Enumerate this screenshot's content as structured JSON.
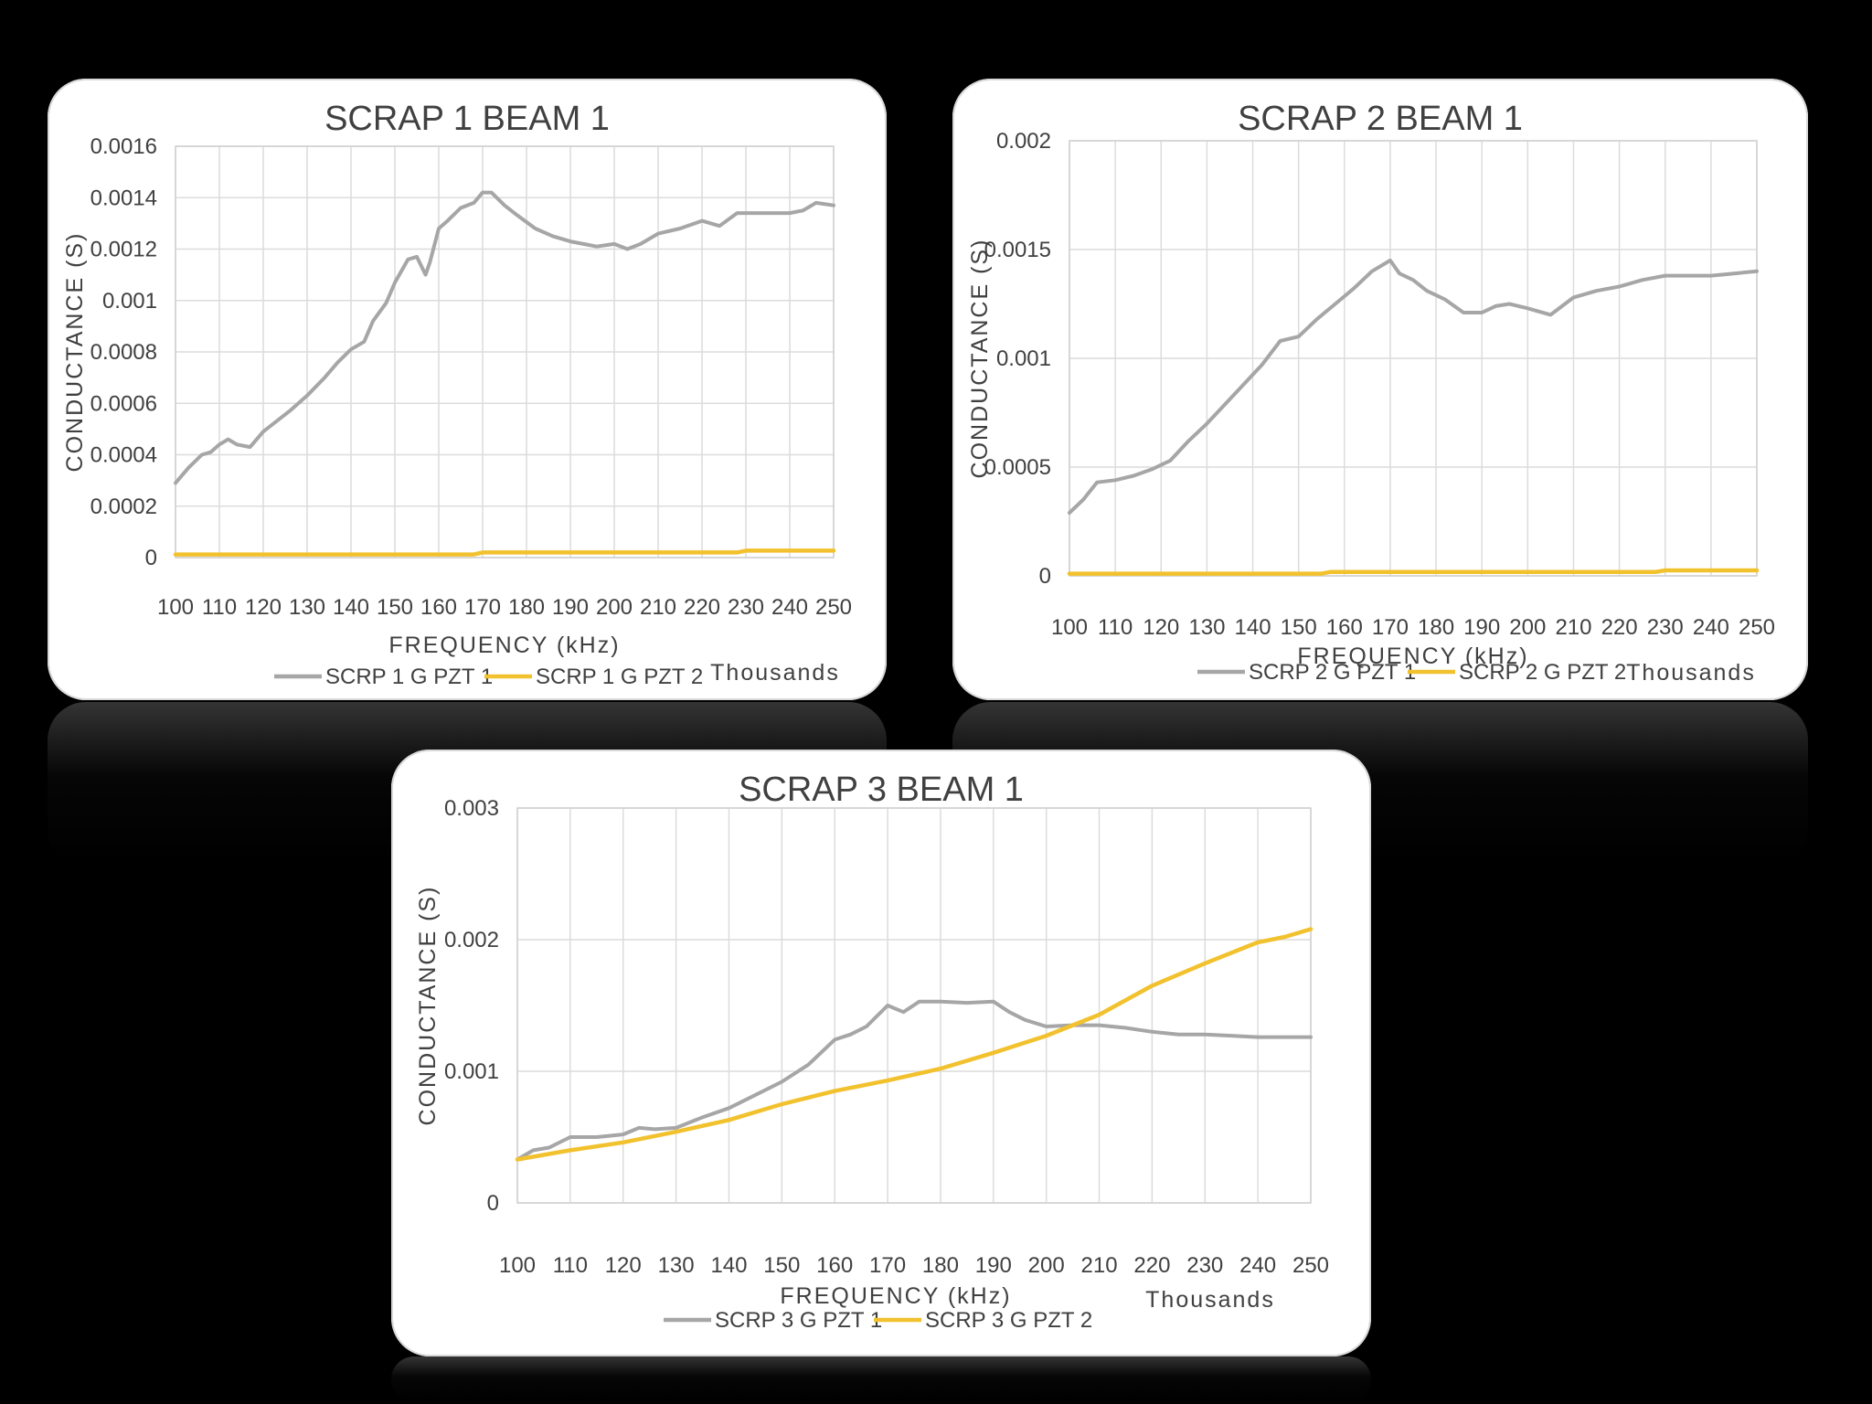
{
  "colors": {
    "background": "#000000",
    "panel": "#ffffff",
    "series_gray": "#a6a6a6",
    "series_gold": "#f2c12e",
    "text": "#404040",
    "grid": "#dcdcdc"
  },
  "chart_data": [
    {
      "type": "line",
      "title": "SCRAP 1 BEAM 1",
      "xlabel": "FREQUENCY (kHz)",
      "ylabel": "CONDUCTANCE (S)",
      "x_unit_label": "Thousands",
      "xlim": [
        100,
        250
      ],
      "ylim": [
        0,
        0.0016
      ],
      "xticks": [
        100,
        110,
        120,
        130,
        140,
        150,
        160,
        170,
        180,
        190,
        200,
        210,
        220,
        230,
        240,
        250
      ],
      "yticks": [
        "0",
        "0.0002",
        "0.0004",
        "0.0006",
        "0.0008",
        "0.001",
        "0.0012",
        "0.0014",
        "0.0016"
      ],
      "ytick_values": [
        0,
        0.0002,
        0.0004,
        0.0006,
        0.0008,
        0.001,
        0.0012,
        0.0014,
        0.0016
      ],
      "grid": true,
      "legend_position": "bottom",
      "series": [
        {
          "name": "SCRP 1 G PZT 1",
          "color": "#a6a6a6",
          "x": [
            100,
            103,
            106,
            108,
            110,
            112,
            114,
            117,
            120,
            123,
            126,
            130,
            134,
            137,
            140,
            143,
            145,
            148,
            150,
            153,
            155,
            157,
            158,
            160,
            162,
            165,
            168,
            170,
            172,
            175,
            178,
            182,
            186,
            190,
            193,
            196,
            200,
            203,
            206,
            210,
            215,
            220,
            224,
            228,
            232,
            236,
            240,
            243,
            246,
            250
          ],
          "y": [
            0.00029,
            0.00035,
            0.0004,
            0.00041,
            0.00044,
            0.00046,
            0.00044,
            0.00043,
            0.00049,
            0.00053,
            0.00057,
            0.00063,
            0.0007,
            0.00076,
            0.00081,
            0.00084,
            0.00092,
            0.00099,
            0.00107,
            0.00116,
            0.00117,
            0.0011,
            0.00115,
            0.00128,
            0.00131,
            0.00136,
            0.00138,
            0.00142,
            0.00142,
            0.00137,
            0.00133,
            0.00128,
            0.00125,
            0.00123,
            0.00122,
            0.00121,
            0.00122,
            0.0012,
            0.00122,
            0.00126,
            0.00128,
            0.00131,
            0.00129,
            0.00134,
            0.00134,
            0.00134,
            0.00134,
            0.00135,
            0.00138,
            0.00137
          ]
        },
        {
          "name": "SCRP 1 G PZT 2",
          "color": "#f2c12e",
          "x": [
            100,
            130,
            160,
            168,
            170,
            200,
            228,
            230,
            250
          ],
          "y": [
            1.2e-05,
            1.2e-05,
            1.2e-05,
            1.2e-05,
            2e-05,
            2e-05,
            2e-05,
            2.7e-05,
            2.7e-05
          ]
        }
      ]
    },
    {
      "type": "line",
      "title": "SCRAP 2 BEAM 1",
      "xlabel": "FREQUENCY (kHz)",
      "ylabel": "CONDUCTANCE (S)",
      "x_unit_label": "Thousands",
      "xlim": [
        100,
        250
      ],
      "ylim": [
        0,
        0.002
      ],
      "xticks": [
        100,
        110,
        120,
        130,
        140,
        150,
        160,
        170,
        180,
        190,
        200,
        210,
        220,
        230,
        240,
        250
      ],
      "yticks": [
        "0",
        "0.0005",
        "0.001",
        "0.0015",
        "0.002"
      ],
      "ytick_values": [
        0,
        0.0005,
        0.001,
        0.0015,
        0.002
      ],
      "grid": true,
      "legend_position": "bottom",
      "series": [
        {
          "name": "SCRP 2 G PZT 1",
          "color": "#a6a6a6",
          "x": [
            100,
            103,
            106,
            110,
            114,
            118,
            122,
            126,
            130,
            134,
            138,
            142,
            146,
            150,
            154,
            158,
            162,
            166,
            170,
            172,
            175,
            178,
            182,
            186,
            190,
            193,
            196,
            200,
            205,
            210,
            215,
            220,
            225,
            230,
            235,
            240,
            245,
            250
          ],
          "y": [
            0.00029,
            0.00035,
            0.00043,
            0.00044,
            0.00046,
            0.00049,
            0.00053,
            0.00062,
            0.0007,
            0.00079,
            0.00088,
            0.00097,
            0.00108,
            0.0011,
            0.00118,
            0.00125,
            0.00132,
            0.0014,
            0.00145,
            0.00139,
            0.00136,
            0.00131,
            0.00127,
            0.00121,
            0.00121,
            0.00124,
            0.00125,
            0.00123,
            0.0012,
            0.00128,
            0.00131,
            0.00133,
            0.00136,
            0.00138,
            0.00138,
            0.00138,
            0.00139,
            0.0014
          ]
        },
        {
          "name": "SCRP 2 G PZT 2",
          "color": "#f2c12e",
          "x": [
            100,
            130,
            155,
            157,
            200,
            228,
            230,
            250
          ],
          "y": [
            1e-05,
            1e-05,
            1e-05,
            1.8e-05,
            1.8e-05,
            1.8e-05,
            2.5e-05,
            2.5e-05
          ]
        }
      ]
    },
    {
      "type": "line",
      "title": "SCRAP 3 BEAM 1",
      "xlabel": "FREQUENCY (kHz)",
      "ylabel": "CONDUCTANCE (S)",
      "x_unit_label": "Thousands",
      "xlim": [
        100,
        250
      ],
      "ylim": [
        0,
        0.003
      ],
      "xticks": [
        100,
        110,
        120,
        130,
        140,
        150,
        160,
        170,
        180,
        190,
        200,
        210,
        220,
        230,
        240,
        250
      ],
      "yticks": [
        "0",
        "0.001",
        "0.002",
        "0.003"
      ],
      "ytick_values": [
        0,
        0.001,
        0.002,
        0.003
      ],
      "grid": true,
      "legend_position": "bottom",
      "series": [
        {
          "name": "SCRP 3 G PZT 1",
          "color": "#a6a6a6",
          "x": [
            100,
            103,
            106,
            110,
            115,
            120,
            123,
            126,
            130,
            135,
            140,
            145,
            150,
            155,
            160,
            163,
            166,
            170,
            173,
            176,
            180,
            185,
            190,
            193,
            196,
            200,
            205,
            210,
            215,
            220,
            225,
            230,
            235,
            240,
            245,
            250
          ],
          "y": [
            0.00033,
            0.0004,
            0.00042,
            0.0005,
            0.0005,
            0.00052,
            0.00057,
            0.00056,
            0.00057,
            0.00065,
            0.00072,
            0.00082,
            0.00092,
            0.00105,
            0.00124,
            0.00128,
            0.00134,
            0.0015,
            0.00145,
            0.00153,
            0.00153,
            0.00152,
            0.00153,
            0.00145,
            0.00139,
            0.00134,
            0.00135,
            0.00135,
            0.00133,
            0.0013,
            0.00128,
            0.00128,
            0.00127,
            0.00126,
            0.00126,
            0.00126
          ]
        },
        {
          "name": "SCRP 3 G PZT 2",
          "color": "#f2c12e",
          "x": [
            100,
            110,
            120,
            130,
            140,
            150,
            160,
            170,
            180,
            190,
            200,
            210,
            220,
            230,
            240,
            245,
            250
          ],
          "y": [
            0.00033,
            0.0004,
            0.00046,
            0.00054,
            0.00063,
            0.00075,
            0.00085,
            0.00093,
            0.00102,
            0.00114,
            0.00127,
            0.00143,
            0.00165,
            0.00182,
            0.00198,
            0.00202,
            0.00208
          ]
        }
      ]
    }
  ]
}
